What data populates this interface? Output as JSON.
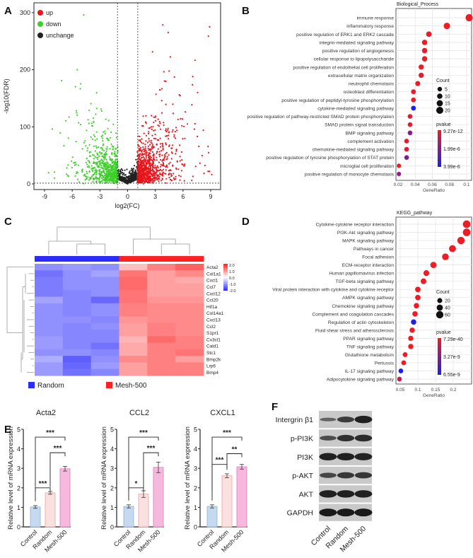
{
  "panel_labels": [
    "A",
    "B",
    "C",
    "D",
    "E",
    "F"
  ],
  "colors": {
    "up": "#e8151b",
    "down": "#3fcf2b",
    "unchange": "#222222",
    "heat_low": "#2b2bff",
    "heat_high": "#ff2020",
    "p_low": "#ee1c25",
    "p_high": "#1d1df0",
    "control": "#c5d9f0",
    "random": "#fbe0e0",
    "mesh": "#f6b8dd"
  },
  "chart_data": [
    {
      "id": "volcano",
      "type": "scatter",
      "xlabel": "log2(FC)",
      "ylabel": "-log10(FDR)",
      "xlim": [
        -10,
        10
      ],
      "ylim": [
        0,
        305
      ],
      "xticks": [
        "-9",
        "-6",
        "-3",
        "0",
        "3",
        "6",
        "9"
      ],
      "yticks": [
        "0",
        "100",
        "200",
        "300"
      ],
      "thresholds": {
        "log2fc": [
          -1,
          1
        ],
        "neg_log10_fdr": 1.3
      },
      "legend": [
        {
          "label": "up",
          "key": "up"
        },
        {
          "label": "down",
          "key": "down"
        },
        {
          "label": "unchange",
          "key": "unchange"
        }
      ],
      "approx_point_counts": {
        "up": 950,
        "down": 700,
        "unchange": 450
      }
    },
    {
      "id": "go_bp",
      "type": "scatter",
      "title": "Biological_Process",
      "xlabel": "GeneRatio",
      "xticks": [
        "0.02",
        "0.04",
        "0.06",
        "0.08",
        "0.1"
      ],
      "xlim": [
        0.015,
        0.105
      ],
      "terms": [
        {
          "term": "immune response",
          "ratio": 0.103,
          "count": 21,
          "pvalue": 1e-11
        },
        {
          "term": "inflammatory response",
          "ratio": 0.077,
          "count": 16,
          "pvalue": 1e-11
        },
        {
          "term": "positive regulation of ERK1 and ERK2 cascade",
          "ratio": 0.056,
          "count": 11,
          "pvalue": 1e-07
        },
        {
          "term": "integrin-mediated signaling pathway",
          "ratio": 0.051,
          "count": 10,
          "pvalue": 1e-08
        },
        {
          "term": "positive regulation of angiogenesis",
          "ratio": 0.051,
          "count": 10,
          "pvalue": 1e-08
        },
        {
          "term": "cellular response to lipopolysaccharide",
          "ratio": 0.051,
          "count": 10,
          "pvalue": 1e-08
        },
        {
          "term": "positive regulation of endothelial cell proliferation",
          "ratio": 0.047,
          "count": 9,
          "pvalue": 1e-07
        },
        {
          "term": "extracellular matrix organization",
          "ratio": 0.047,
          "count": 9,
          "pvalue": 3e-07
        },
        {
          "term": "neutrophil chemotaxis",
          "ratio": 0.043,
          "count": 8,
          "pvalue": 1e-07
        },
        {
          "term": "osteoblast differentiation",
          "ratio": 0.038,
          "count": 7,
          "pvalue": 1e-07
        },
        {
          "term": "positive regulation of peptidyl-tyrosine phosphorylation",
          "ratio": 0.038,
          "count": 7,
          "pvalue": 1e-07
        },
        {
          "term": "cytokine-mediated signaling pathway",
          "ratio": 0.038,
          "count": 7,
          "pvalue": 3.9e-06
        },
        {
          "term": "positive regulation of pathway-restricted SMAD protein phosphorylation",
          "ratio": 0.034,
          "count": 6,
          "pvalue": 2e-07
        },
        {
          "term": "SMAD protein signal transduction",
          "ratio": 0.034,
          "count": 6,
          "pvalue": 2e-07
        },
        {
          "term": "BMP signaling pathway",
          "ratio": 0.034,
          "count": 6,
          "pvalue": 2e-06
        },
        {
          "term": "complement activation",
          "ratio": 0.03,
          "count": 6,
          "pvalue": 2e-07
        },
        {
          "term": "chemokine-mediated signaling pathway",
          "ratio": 0.03,
          "count": 6,
          "pvalue": 3e-07
        },
        {
          "term": "positive regulation of tyrosine phosphorylation of STAT protein",
          "ratio": 0.03,
          "count": 6,
          "pvalue": 2.2e-06
        },
        {
          "term": "microglial cell proliferation",
          "ratio": 0.021,
          "count": 4,
          "pvalue": 2e-07
        },
        {
          "term": "positive regulation of monocyte chemotaxis",
          "ratio": 0.021,
          "count": 4,
          "pvalue": 1.8e-06
        }
      ],
      "size_legend": {
        "title": "Count",
        "values": [
          "5",
          "10",
          "15",
          "20"
        ]
      },
      "color_legend": {
        "title": "pvalue",
        "labels": [
          "9.27e-12",
          "1.99e-6",
          "3.99e-6"
        ],
        "range": [
          9.27e-12,
          3.99e-06
        ]
      }
    },
    {
      "id": "kegg",
      "type": "scatter",
      "title": "KEGG_pathway",
      "xlabel": "GeneRatio",
      "xticks": [
        "0.05",
        "0.1",
        "0.15",
        "0.2"
      ],
      "xlim": [
        0.04,
        0.245
      ],
      "terms": [
        {
          "term": "Cytokine-cytokine receptor interaction",
          "ratio": 0.238,
          "count": 64,
          "pvalue": 1e-39
        },
        {
          "term": "PI3K-Akt signaling pathway",
          "ratio": 0.238,
          "count": 64,
          "pvalue": 1e-39
        },
        {
          "term": "MAPK signaling pathway",
          "ratio": 0.222,
          "count": 60,
          "pvalue": 1e-30
        },
        {
          "term": "Pathways in cancer",
          "ratio": 0.198,
          "count": 53,
          "pvalue": 1e-25
        },
        {
          "term": "Focal adhesion",
          "ratio": 0.178,
          "count": 48,
          "pvalue": 1e-20
        },
        {
          "term": "ECM-receptor interaction",
          "ratio": 0.144,
          "count": 39,
          "pvalue": 1e-20
        },
        {
          "term": "Human papillomavirus infection",
          "ratio": 0.124,
          "count": 33,
          "pvalue": 1e-15
        },
        {
          "term": "TGF-beta signaling pathway",
          "ratio": 0.116,
          "count": 31,
          "pvalue": 1e-15
        },
        {
          "term": "Viral protein interaction with cytokine and cytokine receptor",
          "ratio": 0.1,
          "count": 27,
          "pvalue": 1e-14
        },
        {
          "term": "AMPK signaling pathway",
          "ratio": 0.1,
          "count": 27,
          "pvalue": 1e-14
        },
        {
          "term": "Chemokine signaling pathway",
          "ratio": 0.096,
          "count": 26,
          "pvalue": 1e-13
        },
        {
          "term": "Complement and coagulation cascades",
          "ratio": 0.092,
          "count": 25,
          "pvalue": 1e-13
        },
        {
          "term": "Regulation of actin cytoskeleton",
          "ratio": 0.088,
          "count": 24,
          "pvalue": 6.4e-09
        },
        {
          "term": "Fluid shear stress and atherosclerosis",
          "ratio": 0.084,
          "count": 23,
          "pvalue": 1e-12
        },
        {
          "term": "PPAR signaling pathway",
          "ratio": 0.08,
          "count": 22,
          "pvalue": 1e-12
        },
        {
          "term": "TNF signaling pathway",
          "ratio": 0.08,
          "count": 22,
          "pvalue": 1e-12
        },
        {
          "term": "Glutathione metabolism",
          "ratio": 0.064,
          "count": 17,
          "pvalue": 1e-11
        },
        {
          "term": "Pertussis",
          "ratio": 0.06,
          "count": 16,
          "pvalue": 1e-11
        },
        {
          "term": "IL-17 signaling pathway",
          "ratio": 0.052,
          "count": 14,
          "pvalue": 6.5e-09
        },
        {
          "term": "Adipocytokine signaling pathway",
          "ratio": 0.048,
          "count": 13,
          "pvalue": 1.2e-09
        }
      ],
      "size_legend": {
        "title": "Count",
        "values": [
          "20",
          "40",
          "60"
        ]
      },
      "color_legend": {
        "title": "pvalue",
        "labels": [
          "7.29e-40",
          "3.27e-9",
          "6.55e-9"
        ],
        "range": [
          7.29e-40,
          6.55e-09
        ]
      }
    },
    {
      "id": "heatmap",
      "type": "heatmap",
      "genes": [
        "Acta2",
        "Col1a1",
        "Cxcl1",
        "Ccl7",
        "Cxcl12",
        "Ccl20",
        "Hif1a",
        "Col14a1",
        "Cxcl13",
        "Ccl2",
        "S1pr1",
        "Cx3cl1",
        "Cald1",
        "Stc1",
        "Bmp2k",
        "Lrp6",
        "Bmp4"
      ],
      "groups": [
        "Random",
        "Random",
        "Random",
        "Mesh-500",
        "Mesh-500",
        "Mesh-500"
      ],
      "values": [
        [
          -1.1,
          -1.0,
          -1.1,
          0.6,
          1.2,
          1.5
        ],
        [
          -1.4,
          -1.1,
          -0.9,
          1.3,
          0.9,
          1.1
        ],
        [
          -1.3,
          -1.1,
          -1.1,
          1.4,
          0.9,
          0.8
        ],
        [
          -1.3,
          -1.1,
          -1.1,
          1.4,
          0.9,
          0.9
        ],
        [
          -1.3,
          -1.2,
          -1.1,
          1.3,
          0.9,
          0.9
        ],
        [
          -0.9,
          -1.2,
          -1.5,
          1.3,
          1.0,
          1.0
        ],
        [
          -1.1,
          -1.2,
          -1.1,
          1.2,
          1.1,
          1.1
        ],
        [
          -1.1,
          -1.2,
          -1.1,
          1.2,
          1.1,
          1.1
        ],
        [
          -1.1,
          -1.1,
          -1.2,
          1.0,
          1.1,
          1.1
        ],
        [
          -1.1,
          -1.2,
          -1.1,
          0.9,
          1.2,
          1.1
        ],
        [
          -1.1,
          -1.2,
          -1.2,
          0.9,
          1.2,
          1.1
        ],
        [
          -1.0,
          -1.2,
          -1.2,
          0.7,
          1.4,
          1.2
        ],
        [
          -1.0,
          -1.2,
          -1.4,
          0.8,
          1.2,
          1.2
        ],
        [
          -1.1,
          -1.1,
          -1.2,
          0.8,
          1.2,
          1.3
        ],
        [
          -0.8,
          -1.6,
          -1.1,
          1.1,
          1.2,
          0.9
        ],
        [
          -1.0,
          -1.5,
          -1.0,
          0.9,
          1.2,
          1.2
        ],
        [
          -1.0,
          -1.4,
          -1.2,
          0.9,
          1.2,
          1.2
        ]
      ],
      "colorbar_labels": [
        "2.0",
        "1.0",
        "0.0",
        "-1.0",
        "-2.0"
      ],
      "legend": [
        {
          "label": "Random",
          "color": "#2b2bff"
        },
        {
          "label": "Mesh-500",
          "color": "#ff2020"
        }
      ]
    },
    {
      "id": "qpcr",
      "type": "bar",
      "ylabel": "Relative level of mRNA expression",
      "categories": [
        "Control",
        "Random",
        "Mesh-500"
      ],
      "yticks": [
        "0",
        "1",
        "2",
        "3",
        "4",
        "5"
      ],
      "ylim": [
        0,
        5
      ],
      "plots": [
        {
          "title": "Acta2",
          "values": [
            1.02,
            1.74,
            2.98
          ],
          "errors": [
            0.07,
            0.07,
            0.12
          ],
          "significance": [
            {
              "a": 0,
              "b": 1,
              "y": 2.0,
              "label": "***"
            },
            {
              "a": 1,
              "b": 2,
              "y": 3.8,
              "label": "***"
            },
            {
              "a": 0,
              "b": 2,
              "y": 4.6,
              "label": "***"
            }
          ]
        },
        {
          "title": "CCL2",
          "values": [
            1.05,
            1.68,
            3.05
          ],
          "errors": [
            0.08,
            0.17,
            0.27
          ],
          "significance": [
            {
              "a": 0,
              "b": 1,
              "y": 2.0,
              "label": "*"
            },
            {
              "a": 1,
              "b": 2,
              "y": 3.8,
              "label": "***"
            },
            {
              "a": 0,
              "b": 2,
              "y": 4.6,
              "label": "***"
            }
          ]
        },
        {
          "title": "CXCL1",
          "values": [
            1.05,
            2.62,
            3.08
          ],
          "errors": [
            0.08,
            0.1,
            0.12
          ],
          "significance": [
            {
              "a": 0,
              "b": 1,
              "y": 3.2,
              "label": "***"
            },
            {
              "a": 1,
              "b": 2,
              "y": 3.75,
              "label": "**"
            },
            {
              "a": 0,
              "b": 2,
              "y": 4.6,
              "label": "***"
            }
          ]
        }
      ]
    }
  ],
  "western_blot": {
    "lanes": [
      "Control",
      "Random",
      "Mesh-500"
    ],
    "proteins": [
      {
        "name": "Intergrin β1",
        "band_intensity": [
          0.35,
          0.7,
          0.95
        ]
      },
      {
        "name": "p-PI3K",
        "band_intensity": [
          0.55,
          0.8,
          0.85
        ]
      },
      {
        "name": "PI3K",
        "band_intensity": [
          0.95,
          0.95,
          0.92
        ]
      },
      {
        "name": "p-AKT",
        "band_intensity": [
          0.6,
          0.75,
          0.75
        ]
      },
      {
        "name": "AKT",
        "band_intensity": [
          0.95,
          0.95,
          0.95
        ]
      },
      {
        "name": "GAPDH",
        "band_intensity": [
          1.0,
          1.0,
          1.0
        ]
      }
    ]
  }
}
